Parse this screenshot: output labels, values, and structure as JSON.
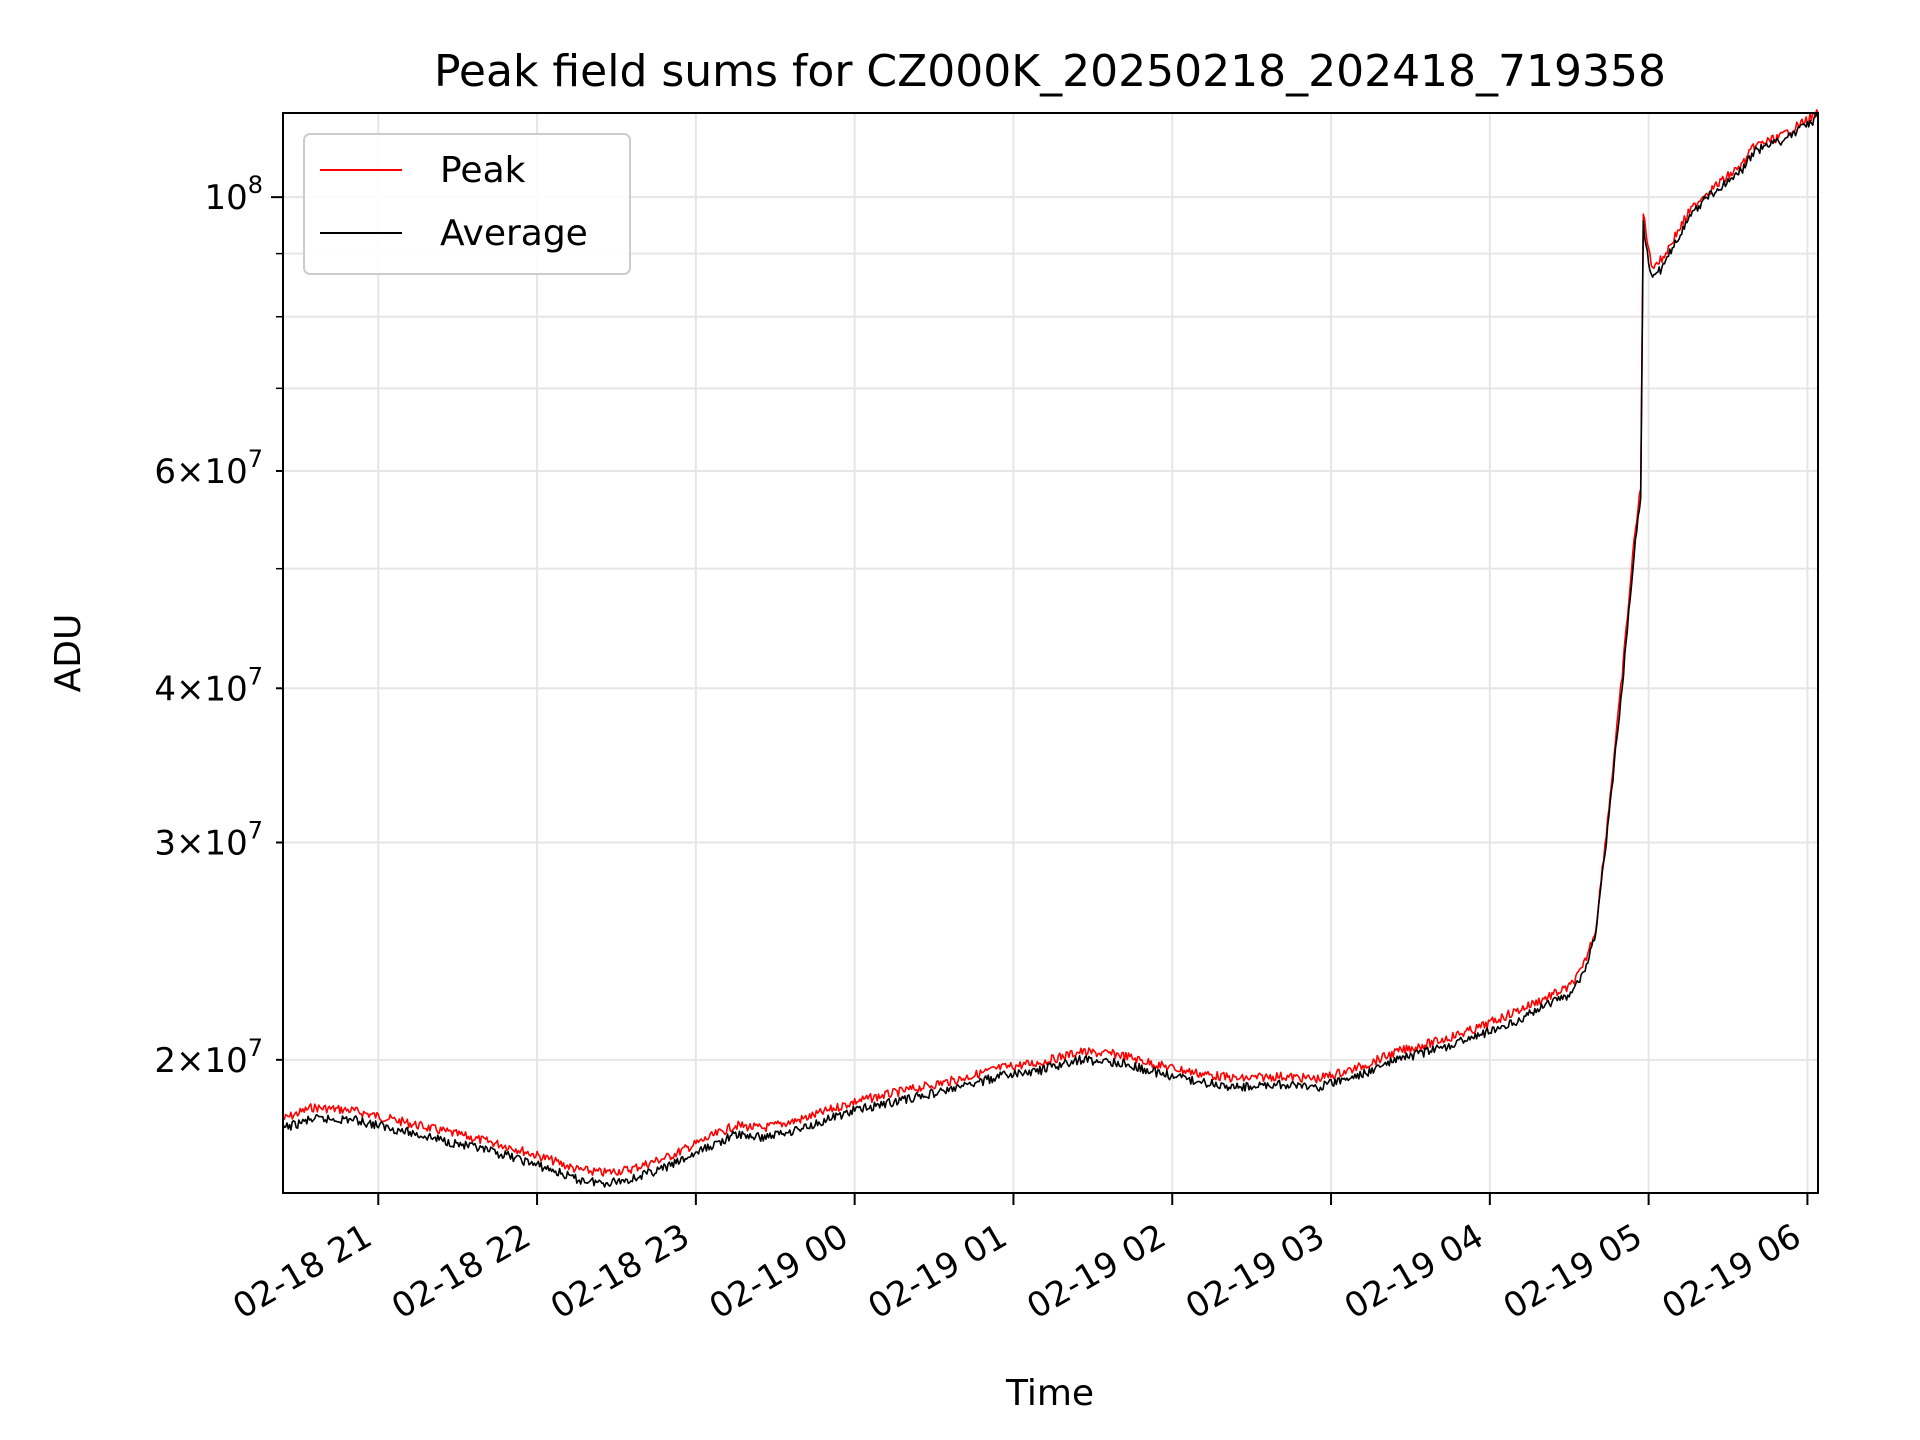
{
  "chart_data": {
    "type": "line",
    "title": "Peak field sums for CZ000K_20250218_202418_719358",
    "xlabel": "Time",
    "ylabel": "ADU",
    "y_scale": "log",
    "ylim": [
      15600000,
      117000000
    ],
    "xlim": [
      "2025-02-18 20:24",
      "2025-02-19 06:04"
    ],
    "grid": true,
    "legend_position": "upper left",
    "x_ticks": [
      {
        "time": "2025-02-18 21:00",
        "label": "02-18 21"
      },
      {
        "time": "2025-02-18 22:00",
        "label": "02-18 22"
      },
      {
        "time": "2025-02-18 23:00",
        "label": "02-18 23"
      },
      {
        "time": "2025-02-19 00:00",
        "label": "02-19 00"
      },
      {
        "time": "2025-02-19 01:00",
        "label": "02-19 01"
      },
      {
        "time": "2025-02-19 02:00",
        "label": "02-19 02"
      },
      {
        "time": "2025-02-19 03:00",
        "label": "02-19 03"
      },
      {
        "time": "2025-02-19 04:00",
        "label": "02-19 04"
      },
      {
        "time": "2025-02-19 05:00",
        "label": "02-19 05"
      },
      {
        "time": "2025-02-19 06:00",
        "label": "02-19 06"
      }
    ],
    "y_ticks": [
      {
        "value": 20000000,
        "mantissa": "2",
        "exponent": "7",
        "major": false
      },
      {
        "value": 30000000,
        "mantissa": "3",
        "exponent": "7",
        "major": false
      },
      {
        "value": 40000000,
        "mantissa": "4",
        "exponent": "7",
        "major": false
      },
      {
        "value": 60000000,
        "mantissa": "6",
        "exponent": "7",
        "major": false
      },
      {
        "value": 100000000,
        "mantissa": "10",
        "exponent": "8",
        "major": true
      }
    ],
    "y_minor_ticks": [
      50000000,
      70000000,
      80000000,
      90000000
    ],
    "series": [
      {
        "name": "Peak",
        "color": "#ff0000",
        "x": [
          "2025-02-18 20:24",
          "2025-02-18 20:35",
          "2025-02-18 20:50",
          "2025-02-18 21:05",
          "2025-02-18 21:20",
          "2025-02-18 21:35",
          "2025-02-18 21:50",
          "2025-02-18 22:05",
          "2025-02-18 22:15",
          "2025-02-18 22:25",
          "2025-02-18 22:35",
          "2025-02-18 22:50",
          "2025-02-18 23:05",
          "2025-02-18 23:15",
          "2025-02-18 23:25",
          "2025-02-18 23:40",
          "2025-02-19 00:00",
          "2025-02-19 00:20",
          "2025-02-19 00:40",
          "2025-02-19 00:55",
          "2025-02-19 01:10",
          "2025-02-19 01:25",
          "2025-02-19 01:40",
          "2025-02-19 01:55",
          "2025-02-19 02:10",
          "2025-02-19 02:25",
          "2025-02-19 02:40",
          "2025-02-19 02:55",
          "2025-02-19 03:10",
          "2025-02-19 03:25",
          "2025-02-19 03:40",
          "2025-02-19 03:55",
          "2025-02-19 04:10",
          "2025-02-19 04:20",
          "2025-02-19 04:30",
          "2025-02-19 04:35",
          "2025-02-19 04:40",
          "2025-02-19 04:45",
          "2025-02-19 04:50",
          "2025-02-19 04:55",
          "2025-02-19 04:57",
          "2025-02-19 04:58",
          "2025-02-19 05:01",
          "2025-02-19 05:05",
          "2025-02-19 05:10",
          "2025-02-19 05:15",
          "2025-02-19 05:20",
          "2025-02-19 05:25",
          "2025-02-19 05:30",
          "2025-02-19 05:35",
          "2025-02-19 05:40",
          "2025-02-19 05:50",
          "2025-02-19 06:04"
        ],
        "y": [
          17900000,
          18300000,
          18200000,
          17900000,
          17600000,
          17300000,
          17000000,
          16600000,
          16300000,
          16200000,
          16300000,
          16700000,
          17300000,
          17700000,
          17600000,
          17900000,
          18500000,
          18900000,
          19300000,
          19700000,
          19900000,
          20300000,
          20200000,
          19800000,
          19500000,
          19300000,
          19400000,
          19300000,
          19700000,
          20300000,
          20700000,
          21200000,
          21900000,
          22400000,
          22900000,
          23700000,
          25500000,
          32000000,
          41000000,
          54000000,
          58000000,
          97000000,
          88000000,
          89000000,
          93000000,
          97000000,
          100000000,
          102000000,
          104000000,
          106000000,
          110000000,
          112000000,
          117000000
        ]
      },
      {
        "name": "Average",
        "color": "#000000",
        "x": [
          "2025-02-18 20:24",
          "2025-02-18 20:35",
          "2025-02-18 20:50",
          "2025-02-18 21:05",
          "2025-02-18 21:20",
          "2025-02-18 21:35",
          "2025-02-18 21:50",
          "2025-02-18 22:05",
          "2025-02-18 22:15",
          "2025-02-18 22:25",
          "2025-02-18 22:35",
          "2025-02-18 22:50",
          "2025-02-18 23:05",
          "2025-02-18 23:15",
          "2025-02-18 23:25",
          "2025-02-18 23:40",
          "2025-02-19 00:00",
          "2025-02-19 00:20",
          "2025-02-19 00:40",
          "2025-02-19 00:55",
          "2025-02-19 01:10",
          "2025-02-19 01:25",
          "2025-02-19 01:40",
          "2025-02-19 01:55",
          "2025-02-19 02:10",
          "2025-02-19 02:25",
          "2025-02-19 02:40",
          "2025-02-19 02:55",
          "2025-02-19 03:10",
          "2025-02-19 03:25",
          "2025-02-19 03:40",
          "2025-02-19 03:55",
          "2025-02-19 04:10",
          "2025-02-19 04:20",
          "2025-02-19 04:30",
          "2025-02-19 04:35",
          "2025-02-19 04:40",
          "2025-02-19 04:45",
          "2025-02-19 04:50",
          "2025-02-19 04:55",
          "2025-02-19 04:57",
          "2025-02-19 04:58",
          "2025-02-19 05:01",
          "2025-02-19 05:05",
          "2025-02-19 05:10",
          "2025-02-19 05:15",
          "2025-02-19 05:20",
          "2025-02-19 05:25",
          "2025-02-19 05:30",
          "2025-02-19 05:35",
          "2025-02-19 05:40",
          "2025-02-19 05:50",
          "2025-02-19 06:04"
        ],
        "y": [
          17600000,
          17900000,
          17900000,
          17600000,
          17300000,
          17000000,
          16700000,
          16300000,
          16000000,
          15900000,
          16000000,
          16400000,
          17000000,
          17400000,
          17300000,
          17600000,
          18200000,
          18600000,
          19000000,
          19400000,
          19600000,
          20000000,
          19900000,
          19500000,
          19200000,
          19000000,
          19100000,
          19000000,
          19400000,
          20000000,
          20400000,
          20900000,
          21500000,
          22100000,
          22600000,
          23400000,
          25200000,
          31500000,
          40000000,
          53000000,
          57000000,
          95000000,
          86000000,
          87500000,
          92000000,
          96000000,
          99000000,
          101000000,
          103000000,
          105000000,
          109000000,
          111000000,
          116000000
        ]
      }
    ]
  }
}
